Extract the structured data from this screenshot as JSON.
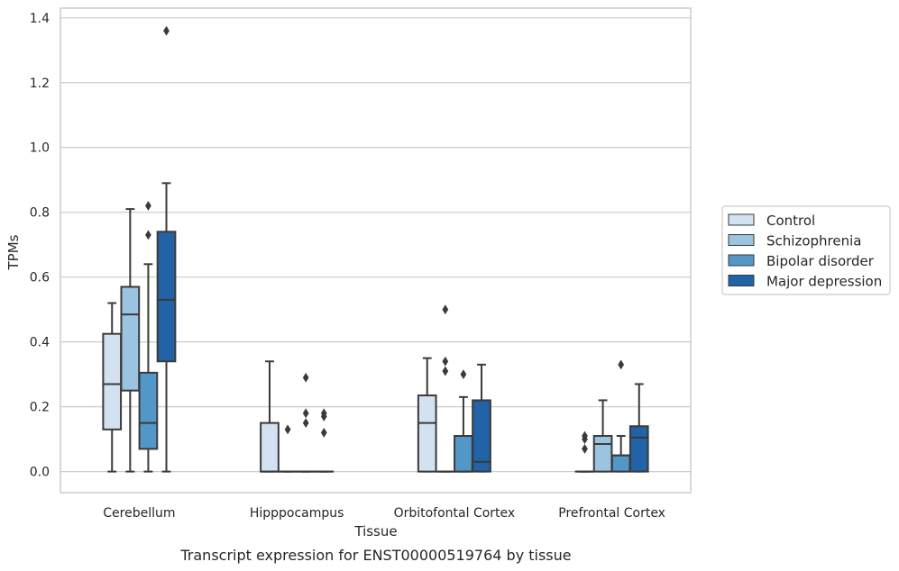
{
  "caption": "Transcript expression for ENST00000519764 by tissue",
  "colors": {
    "Control": "#d3e2f1",
    "Schizophrenia": "#9ac4df",
    "Bipolar disorder": "#5397c8",
    "Major depression": "#2262a6",
    "line": "#3a3a3a",
    "grid": "#cccccc",
    "frame": "#cccccc"
  },
  "chart_data": {
    "type": "box",
    "xlabel": "Tissue",
    "ylabel": "TPMs",
    "ylim": [
      -0.065,
      1.43
    ],
    "yticks": [
      0.0,
      0.2,
      0.4,
      0.6,
      0.8,
      1.0,
      1.2,
      1.4
    ],
    "ytick_labels": [
      "0.0",
      "0.2",
      "0.4",
      "0.6",
      "0.8",
      "1.0",
      "1.2",
      "1.4"
    ],
    "grid": true,
    "legend_position": "right",
    "categories": [
      "Cerebellum",
      "Hipppocampus",
      "Orbitofontal Cortex",
      "Prefrontal Cortex"
    ],
    "series": [
      {
        "name": "Control",
        "boxes": [
          {
            "whislo": 0.0,
            "q1": 0.13,
            "med": 0.27,
            "q3": 0.425,
            "whishi": 0.52,
            "fliers": []
          },
          {
            "whislo": 0.0,
            "q1": 0.0,
            "med": 0.0,
            "q3": 0.15,
            "whishi": 0.34,
            "fliers": []
          },
          {
            "whislo": 0.0,
            "q1": 0.0,
            "med": 0.15,
            "q3": 0.235,
            "whishi": 0.35,
            "fliers": []
          },
          {
            "whislo": 0.0,
            "q1": 0.0,
            "med": 0.0,
            "q3": 0.0,
            "whishi": 0.0,
            "fliers": [
              0.07,
              0.1,
              0.11
            ]
          }
        ]
      },
      {
        "name": "Schizophrenia",
        "boxes": [
          {
            "whislo": 0.0,
            "q1": 0.25,
            "med": 0.485,
            "q3": 0.57,
            "whishi": 0.81,
            "fliers": []
          },
          {
            "whislo": 0.0,
            "q1": 0.0,
            "med": 0.0,
            "q3": 0.0,
            "whishi": 0.0,
            "fliers": [
              0.13
            ]
          },
          {
            "whislo": 0.0,
            "q1": 0.0,
            "med": 0.0,
            "q3": 0.0,
            "whishi": 0.0,
            "fliers": [
              0.31,
              0.34,
              0.5
            ]
          },
          {
            "whislo": 0.0,
            "q1": 0.0,
            "med": 0.085,
            "q3": 0.11,
            "whishi": 0.22,
            "fliers": []
          }
        ]
      },
      {
        "name": "Bipolar disorder",
        "boxes": [
          {
            "whislo": 0.0,
            "q1": 0.07,
            "med": 0.15,
            "q3": 0.305,
            "whishi": 0.64,
            "fliers": [
              0.73,
              0.82
            ]
          },
          {
            "whislo": 0.0,
            "q1": 0.0,
            "med": 0.0,
            "q3": 0.0,
            "whishi": 0.0,
            "fliers": [
              0.15,
              0.18,
              0.29
            ]
          },
          {
            "whislo": 0.0,
            "q1": 0.0,
            "med": 0.0,
            "q3": 0.11,
            "whishi": 0.23,
            "fliers": [
              0.3
            ]
          },
          {
            "whislo": 0.0,
            "q1": 0.0,
            "med": 0.05,
            "q3": 0.05,
            "whishi": 0.11,
            "fliers": [
              0.33
            ]
          }
        ]
      },
      {
        "name": "Major depression",
        "boxes": [
          {
            "whislo": 0.0,
            "q1": 0.34,
            "med": 0.53,
            "q3": 0.74,
            "whishi": 0.89,
            "fliers": [
              1.36
            ]
          },
          {
            "whislo": 0.0,
            "q1": 0.0,
            "med": 0.0,
            "q3": 0.0,
            "whishi": 0.0,
            "fliers": [
              0.12,
              0.17,
              0.18
            ]
          },
          {
            "whislo": 0.0,
            "q1": 0.0,
            "med": 0.03,
            "q3": 0.22,
            "whishi": 0.33,
            "fliers": []
          },
          {
            "whislo": 0.0,
            "q1": 0.0,
            "med": 0.105,
            "q3": 0.14,
            "whishi": 0.27,
            "fliers": []
          }
        ]
      }
    ]
  }
}
